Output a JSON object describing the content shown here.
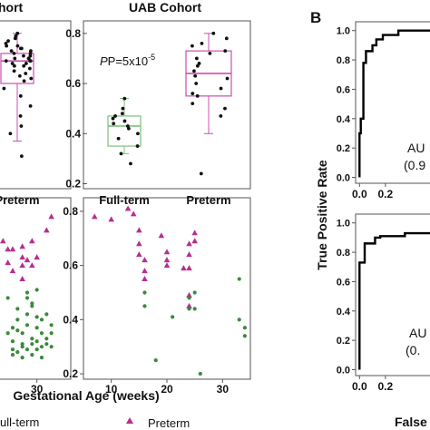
{
  "panel_letter": "B",
  "colors": {
    "green": "#3a8a3a",
    "magenta": "#b52f8f",
    "box_magenta": "#c94fb0",
    "box_green": "#7cbf7c",
    "dots": "#111111",
    "roc": "#000000"
  },
  "chart_data": [
    {
      "id": "left-cohort-box",
      "type": "box",
      "title": "hort",
      "categories": [
        "Preterm"
      ],
      "tick_labels": [],
      "ylim": [
        0.18,
        0.85
      ],
      "series": [
        {
          "name": "Preterm",
          "box": {
            "q1": 0.6,
            "median": 0.69,
            "q3": 0.72,
            "min": 0.37,
            "max": 0.8
          },
          "points": [
            0.8,
            0.79,
            0.78,
            0.77,
            0.76,
            0.75,
            0.75,
            0.74,
            0.74,
            0.73,
            0.73,
            0.72,
            0.72,
            0.71,
            0.71,
            0.7,
            0.7,
            0.7,
            0.69,
            0.69,
            0.69,
            0.68,
            0.68,
            0.67,
            0.67,
            0.66,
            0.65,
            0.64,
            0.63,
            0.62,
            0.61,
            0.58,
            0.55,
            0.51,
            0.47,
            0.43,
            0.4,
            0.31
          ]
        }
      ]
    },
    {
      "id": "uab-cohort-box",
      "type": "box",
      "title": "UAB Cohort",
      "annotation": "P=5x10",
      "annotation_exp": "-5",
      "categories": [
        "Full-term",
        "Preterm"
      ],
      "ylim": [
        0.18,
        0.85
      ],
      "yticks": [
        "0.2",
        "0.4",
        "0.6",
        "0.8"
      ],
      "series": [
        {
          "name": "Full-term",
          "box": {
            "q1": 0.35,
            "median": 0.43,
            "q3": 0.47,
            "min": 0.32,
            "max": 0.54
          },
          "points": [
            0.54,
            0.5,
            0.48,
            0.47,
            0.46,
            0.45,
            0.44,
            0.43,
            0.42,
            0.4,
            0.38,
            0.35,
            0.32,
            0.28
          ]
        },
        {
          "name": "Preterm",
          "box": {
            "q1": 0.55,
            "median": 0.64,
            "q3": 0.73,
            "min": 0.4,
            "max": 0.8
          },
          "points": [
            0.8,
            0.78,
            0.76,
            0.75,
            0.73,
            0.72,
            0.7,
            0.68,
            0.67,
            0.65,
            0.63,
            0.62,
            0.6,
            0.58,
            0.56,
            0.55,
            0.52,
            0.5,
            0.47,
            0.24
          ]
        }
      ]
    },
    {
      "id": "left-cohort-scatter",
      "type": "scatter",
      "xlim": [
        22,
        37
      ],
      "ylim": [
        0.18,
        0.85
      ],
      "xticks": [
        "30"
      ],
      "series": [
        {
          "name": "Preterm",
          "marker": "triangle",
          "x": [
            23,
            24,
            25,
            27,
            27,
            28,
            29,
            30,
            32,
            33,
            24,
            25,
            27,
            27,
            29
          ],
          "y": [
            0.69,
            0.66,
            0.66,
            0.67,
            0.6,
            0.62,
            0.69,
            0.63,
            0.73,
            0.78,
            0.61,
            0.58,
            0.55,
            0.63,
            0.6
          ]
        },
        {
          "name": "Full-term",
          "marker": "dot",
          "x": [
            24,
            25,
            25,
            26,
            26,
            27,
            27,
            28,
            28,
            29,
            29,
            30,
            30,
            31,
            31,
            32,
            32,
            33,
            33,
            25,
            26,
            27,
            28,
            29,
            30,
            31,
            24,
            25,
            26,
            27,
            28,
            29,
            30,
            31,
            32,
            33,
            28,
            29,
            30
          ],
          "y": [
            0.48,
            0.37,
            0.32,
            0.44,
            0.4,
            0.35,
            0.3,
            0.42,
            0.38,
            0.33,
            0.31,
            0.37,
            0.32,
            0.3,
            0.35,
            0.31,
            0.33,
            0.3,
            0.35,
            0.27,
            0.28,
            0.26,
            0.29,
            0.27,
            0.29,
            0.26,
            0.35,
            0.29,
            0.36,
            0.31,
            0.48,
            0.45,
            0.51,
            0.4,
            0.42,
            0.38,
            0.5,
            0.46,
            0.41
          ]
        }
      ]
    },
    {
      "id": "uab-scatter",
      "type": "scatter",
      "xlabel": "Gestational Age (weeks)",
      "xlim": [
        5,
        35
      ],
      "xticks": [
        "10",
        "20",
        "30"
      ],
      "ylim": [
        0.18,
        0.85
      ],
      "yticks": [
        "0.2",
        "0.4",
        "0.6",
        "0.8"
      ],
      "series": [
        {
          "name": "Preterm",
          "marker": "triangle",
          "x": [
            7,
            10,
            13,
            14,
            15,
            15,
            15,
            16,
            16,
            16,
            19,
            20,
            20,
            20,
            23,
            24,
            24,
            24,
            24,
            24,
            25,
            25
          ],
          "y": [
            0.78,
            0.77,
            0.81,
            0.79,
            0.73,
            0.68,
            0.64,
            0.62,
            0.58,
            0.55,
            0.71,
            0.65,
            0.62,
            0.6,
            0.59,
            0.68,
            0.64,
            0.59,
            0.49,
            0.45,
            0.72,
            0.69
          ]
        },
        {
          "name": "Full-term",
          "marker": "dot",
          "x": [
            16,
            16,
            18,
            21,
            24,
            24,
            25,
            25,
            26,
            33,
            33,
            34,
            34
          ],
          "y": [
            0.5,
            0.45,
            0.25,
            0.41,
            0.48,
            0.44,
            0.5,
            0.44,
            0.2,
            0.55,
            0.4,
            0.37,
            0.34
          ]
        }
      ]
    },
    {
      "id": "roc-top",
      "type": "line",
      "ylabel": "True Positive Rate",
      "xlim": [
        -0.03,
        0.6
      ],
      "ylim": [
        -0.04,
        1.06
      ],
      "xticks": [
        "0.0",
        "0.2"
      ],
      "yticks": [
        "0.0",
        "0.2",
        "0.4",
        "0.6",
        "0.8",
        "1.0"
      ],
      "annotation_line1": "AU",
      "annotation_line2": "(0.9",
      "x": [
        0.0,
        0.0,
        0.01,
        0.01,
        0.03,
        0.03,
        0.05,
        0.05,
        0.1,
        0.1,
        0.13,
        0.13,
        0.18,
        0.18,
        0.3,
        0.3,
        0.6
      ],
      "y": [
        0.0,
        0.3,
        0.3,
        0.4,
        0.4,
        0.78,
        0.78,
        0.86,
        0.86,
        0.9,
        0.9,
        0.94,
        0.94,
        0.97,
        0.97,
        1.0,
        1.0
      ]
    },
    {
      "id": "roc-bottom",
      "type": "line",
      "xlabel": "False",
      "xlim": [
        -0.03,
        0.6
      ],
      "ylim": [
        -0.04,
        1.06
      ],
      "xticks": [
        "0.0",
        "0.2"
      ],
      "yticks": [
        "0.0",
        "0.2",
        "0.4",
        "0.6",
        "0.8",
        "1.0"
      ],
      "annotation_line1": "AU",
      "annotation_line2": "(0.",
      "x": [
        0.0,
        0.0,
        0.04,
        0.04,
        0.12,
        0.12,
        0.16,
        0.16,
        0.35,
        0.35,
        0.6
      ],
      "y": [
        0.0,
        0.73,
        0.73,
        0.86,
        0.86,
        0.9,
        0.9,
        0.91,
        0.91,
        0.93,
        0.93
      ]
    }
  ],
  "legend": {
    "full_term": "ull-term",
    "preterm": "Preterm"
  }
}
